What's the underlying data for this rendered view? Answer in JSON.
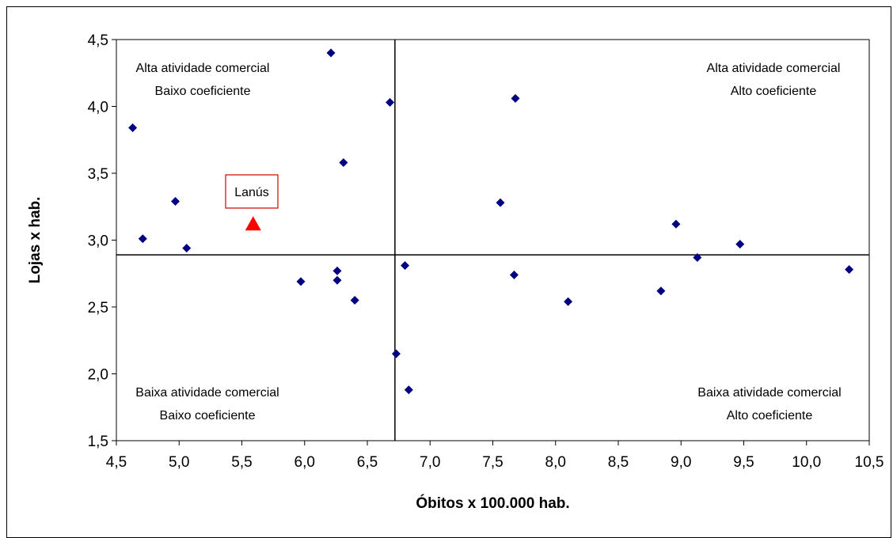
{
  "chart_data": {
    "type": "scatter",
    "title": "",
    "xlabel": "Óbitos x 100.000 hab.",
    "ylabel": "Lojas x hab.",
    "xlim": [
      4.5,
      10.5
    ],
    "ylim": [
      1.5,
      4.5
    ],
    "x_ticks": [
      "4,5",
      "5,0",
      "5,5",
      "6,0",
      "6,5",
      "7,0",
      "7,5",
      "8,0",
      "8,5",
      "9,0",
      "9,5",
      "10,0",
      "10,5"
    ],
    "y_ticks": [
      "1,5",
      "2,0",
      "2,5",
      "3,0",
      "3,5",
      "4,0",
      "4,5"
    ],
    "divider_x": 6.72,
    "divider_y": 2.89,
    "grid": false,
    "legend": "none",
    "series": [
      {
        "color": "#000080",
        "marker": "diamond",
        "points": [
          {
            "x": 4.63,
            "y": 3.84
          },
          {
            "x": 4.71,
            "y": 3.01
          },
          {
            "x": 4.97,
            "y": 3.29
          },
          {
            "x": 5.06,
            "y": 2.94
          },
          {
            "x": 5.97,
            "y": 2.69
          },
          {
            "x": 6.21,
            "y": 4.4
          },
          {
            "x": 6.26,
            "y": 2.77
          },
          {
            "x": 6.26,
            "y": 2.7
          },
          {
            "x": 6.31,
            "y": 3.58
          },
          {
            "x": 6.4,
            "y": 2.55
          },
          {
            "x": 6.68,
            "y": 4.03
          },
          {
            "x": 6.73,
            "y": 2.15
          },
          {
            "x": 6.8,
            "y": 2.81
          },
          {
            "x": 6.83,
            "y": 1.88
          },
          {
            "x": 7.56,
            "y": 3.28
          },
          {
            "x": 7.67,
            "y": 2.74
          },
          {
            "x": 7.68,
            "y": 4.06
          },
          {
            "x": 8.1,
            "y": 2.54
          },
          {
            "x": 8.84,
            "y": 2.62
          },
          {
            "x": 8.96,
            "y": 3.12
          },
          {
            "x": 9.13,
            "y": 2.87
          },
          {
            "x": 9.47,
            "y": 2.97
          },
          {
            "x": 10.34,
            "y": 2.78
          }
        ]
      },
      {
        "name": "Lanús",
        "color": "#ff0000",
        "marker": "triangle",
        "points": [
          {
            "x": 5.59,
            "y": 3.12
          }
        ]
      }
    ],
    "annotations": {
      "top_left": [
        "Alta atividade comercial",
        "Baixo coeficiente"
      ],
      "top_right": [
        "Alta atividade comercial",
        "Alto coeficiente"
      ],
      "bottom_left": [
        "Baixa atividade comercial",
        "Baixo coeficiente"
      ],
      "bottom_right": [
        "Baixa atividade comercial",
        "Alto coeficiente"
      ],
      "highlight_label": "Lanús"
    }
  }
}
